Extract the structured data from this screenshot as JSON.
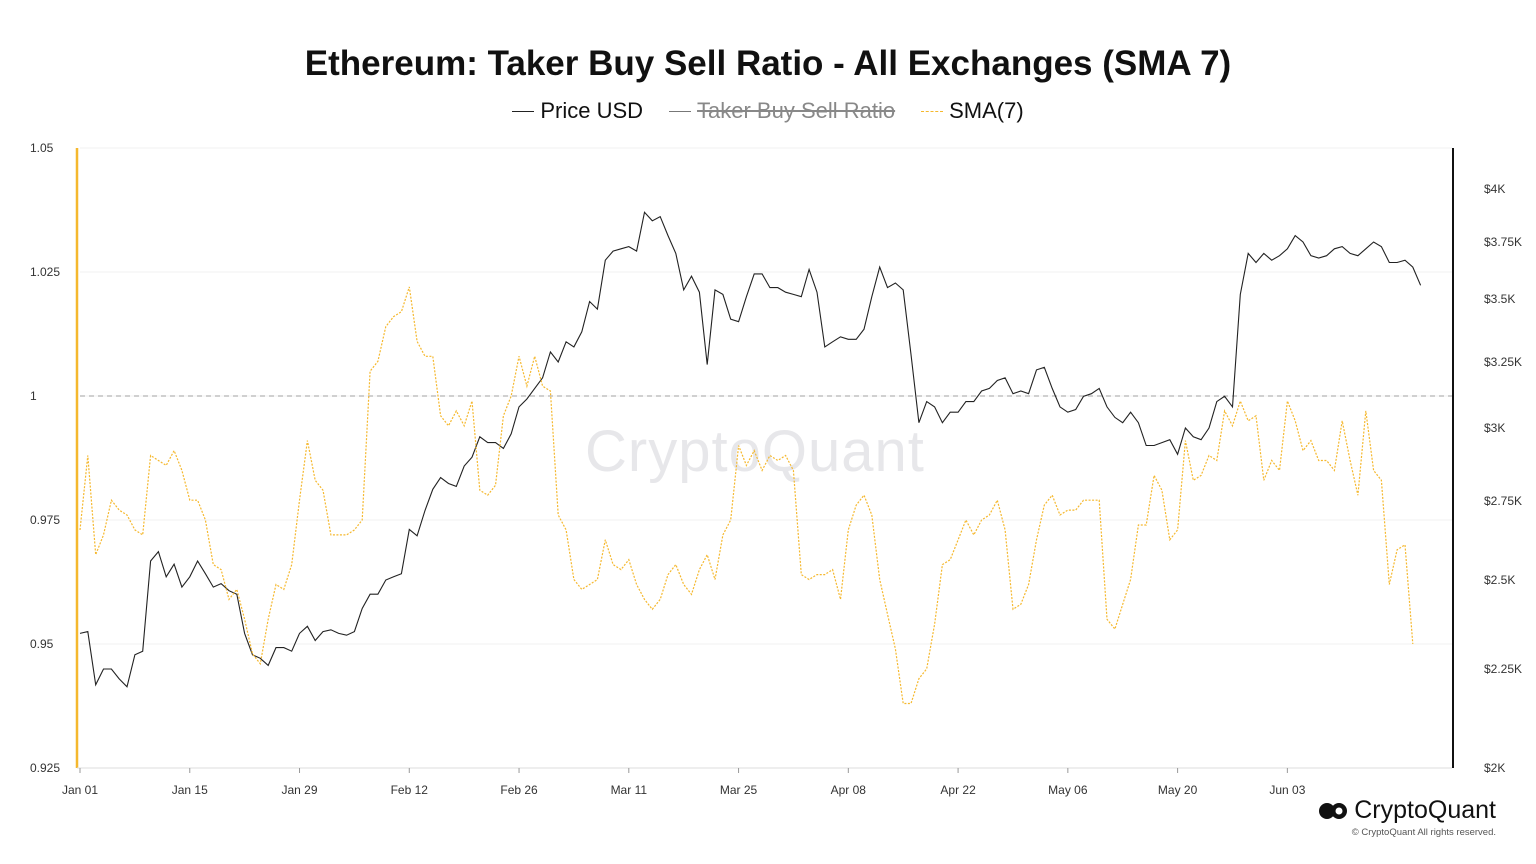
{
  "chart_data": {
    "type": "line",
    "title": "Ethereum: Taker Buy Sell Ratio - All Exchanges (SMA 7)",
    "legend": [
      {
        "name": "Price USD",
        "style": "solid",
        "color": "#222222",
        "hidden": false
      },
      {
        "name": "Taker Buy Sell Ratio",
        "style": "solid",
        "color": "#777777",
        "hidden": true
      },
      {
        "name": "SMA(7)",
        "style": "dashed",
        "color": "#f5b82e",
        "hidden": false
      }
    ],
    "x_ticks": [
      "Jan 01",
      "Jan 15",
      "Jan 29",
      "Feb 12",
      "Feb 26",
      "Mar 11",
      "Mar 25",
      "Apr 08",
      "Apr 22",
      "May 06",
      "May 20",
      "Jun 03"
    ],
    "left_axis": {
      "ticks": [
        "1.05",
        "1.025",
        "1",
        "0.975",
        "0.95",
        "0.925"
      ],
      "range": [
        0.925,
        1.05
      ]
    },
    "right_axis": {
      "ticks": [
        "$4K",
        "$3.75K",
        "$3.5K",
        "$3.25K",
        "$3K",
        "$2.75K",
        "$2.5K",
        "$2.25K",
        "$2K"
      ]
    },
    "reference_line": 1,
    "series": [
      {
        "name": "Price USD",
        "axis": "right",
        "color": "#222222",
        "values": [
          2350,
          2355,
          2210,
          2250,
          2250,
          2225,
          2205,
          2290,
          2300,
          2560,
          2590,
          2510,
          2550,
          2480,
          2510,
          2560,
          2520,
          2480,
          2490,
          2470,
          2460,
          2350,
          2290,
          2280,
          2260,
          2310,
          2310,
          2300,
          2350,
          2370,
          2330,
          2355,
          2360,
          2350,
          2345,
          2355,
          2420,
          2460,
          2460,
          2500,
          2510,
          2520,
          2660,
          2640,
          2720,
          2790,
          2830,
          2810,
          2800,
          2870,
          2900,
          2970,
          2950,
          2950,
          2930,
          2980,
          3080,
          3110,
          3150,
          3190,
          3290,
          3250,
          3330,
          3310,
          3370,
          3490,
          3460,
          3670,
          3710,
          3720,
          3730,
          3710,
          3890,
          3850,
          3870,
          3780,
          3700,
          3540,
          3600,
          3530,
          3240,
          3540,
          3520,
          3420,
          3410,
          3510,
          3610,
          3610,
          3550,
          3550,
          3530,
          3520,
          3510,
          3630,
          3530,
          3310,
          3330,
          3350,
          3340,
          3340,
          3380,
          3510,
          3640,
          3550,
          3570,
          3540,
          3280,
          3020,
          3100,
          3080,
          3020,
          3060,
          3060,
          3100,
          3100,
          3140,
          3150,
          3180,
          3190,
          3130,
          3140,
          3130,
          3220,
          3230,
          3150,
          3080,
          3060,
          3070,
          3120,
          3130,
          3150,
          3080,
          3040,
          3020,
          3060,
          3020,
          2940,
          2940,
          2950,
          2960,
          2910,
          3000,
          2970,
          2960,
          3000,
          3100,
          3120,
          3080,
          3520,
          3700,
          3660,
          3700,
          3670,
          3690,
          3720,
          3780,
          3750,
          3690,
          3680,
          3690,
          3720,
          3730,
          3700,
          3690,
          3720,
          3750,
          3730,
          3660,
          3660,
          3670,
          3640,
          3560
        ]
      },
      {
        "name": "SMA(7)",
        "axis": "left",
        "color": "#f5b82e",
        "values": [
          0.973,
          0.988,
          0.968,
          0.972,
          0.979,
          0.977,
          0.976,
          0.973,
          0.972,
          0.988,
          0.987,
          0.986,
          0.989,
          0.985,
          0.979,
          0.979,
          0.975,
          0.966,
          0.965,
          0.959,
          0.961,
          0.955,
          0.948,
          0.946,
          0.955,
          0.962,
          0.961,
          0.966,
          0.979,
          0.991,
          0.983,
          0.981,
          0.972,
          0.972,
          0.972,
          0.973,
          0.975,
          1.005,
          1.007,
          1.014,
          1.016,
          1.017,
          1.022,
          1.011,
          1.008,
          1.008,
          0.996,
          0.994,
          0.997,
          0.994,
          0.999,
          0.981,
          0.98,
          0.982,
          0.996,
          1.0,
          1.008,
          1.002,
          1.008,
          1.002,
          1.001,
          0.976,
          0.973,
          0.963,
          0.961,
          0.962,
          0.963,
          0.971,
          0.966,
          0.965,
          0.967,
          0.962,
          0.959,
          0.957,
          0.959,
          0.964,
          0.966,
          0.962,
          0.96,
          0.965,
          0.968,
          0.963,
          0.972,
          0.975,
          0.99,
          0.986,
          0.989,
          0.985,
          0.988,
          0.987,
          0.988,
          0.985,
          0.964,
          0.963,
          0.964,
          0.964,
          0.965,
          0.959,
          0.973,
          0.978,
          0.98,
          0.976,
          0.963,
          0.956,
          0.949,
          0.938,
          0.938,
          0.943,
          0.945,
          0.954,
          0.966,
          0.967,
          0.971,
          0.975,
          0.972,
          0.975,
          0.976,
          0.979,
          0.973,
          0.957,
          0.958,
          0.962,
          0.971,
          0.978,
          0.98,
          0.976,
          0.977,
          0.977,
          0.979,
          0.979,
          0.979,
          0.955,
          0.953,
          0.958,
          0.963,
          0.974,
          0.974,
          0.984,
          0.981,
          0.971,
          0.973,
          0.991,
          0.983,
          0.984,
          0.988,
          0.987,
          0.997,
          0.994,
          0.999,
          0.995,
          0.996,
          0.983,
          0.987,
          0.985,
          0.999,
          0.995,
          0.989,
          0.991,
          0.987,
          0.987,
          0.985,
          0.995,
          0.987,
          0.98,
          0.997,
          0.985,
          0.983,
          0.962,
          0.969,
          0.97,
          0.95
        ],
        "last_index": 174
      }
    ]
  },
  "watermark": "CryptoQuant",
  "brand": {
    "name": "CryptoQuant",
    "copyright": "© CryptoQuant All rights reserved."
  }
}
